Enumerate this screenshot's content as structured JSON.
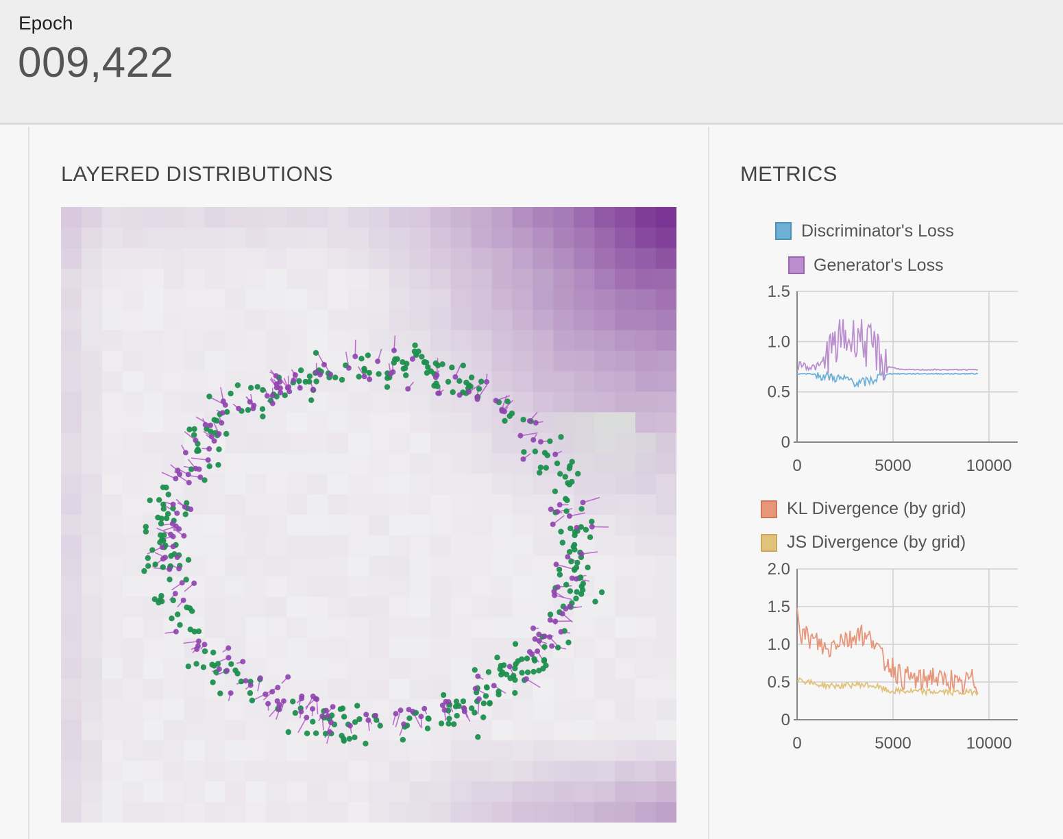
{
  "header": {
    "epoch_label": "Epoch",
    "epoch_value": "009,422"
  },
  "panels": {
    "distributions_title": "LAYERED DISTRIBUTIONS",
    "metrics_title": "METRICS"
  },
  "colors": {
    "real_points": "#1e8f4e",
    "generated_points": "#8e44ad",
    "discriminator_loss": "#6fb0d6",
    "generator_loss": "#bb8fce",
    "kl_divergence": "#e8967a",
    "js_divergence": "#e0c27a",
    "heatmap_high": "#7b3594",
    "heatmap_low": "#efeef0"
  },
  "chart_data": [
    {
      "type": "scatter",
      "title": "LAYERED DISTRIBUTIONS",
      "description_series": [
        {
          "name": "",
          "role": "real",
          "shape": "ring",
          "center": [
            0.5,
            0.5
          ],
          "radius_x": 0.34,
          "radius_y": 0.3
        },
        {
          "name": "",
          "role": "generated",
          "shape": "ring",
          "center": [
            0.5,
            0.5
          ],
          "radius_x": 0.33,
          "radius_y": 0.29
        }
      ],
      "xlim": [
        0,
        1
      ],
      "ylim": [
        0,
        1
      ],
      "background": "heatmap"
    },
    {
      "type": "line",
      "title": "",
      "series": [
        {
          "name": "Discriminator's Loss",
          "points": [
            [
              0,
              0.68
            ],
            [
              200,
              0.68
            ],
            [
              800,
              0.68
            ],
            [
              1200,
              0.66
            ],
            [
              1600,
              0.65
            ],
            [
              2000,
              0.64
            ],
            [
              2400,
              0.62
            ],
            [
              2800,
              0.62
            ],
            [
              3200,
              0.58
            ],
            [
              3600,
              0.6
            ],
            [
              4000,
              0.62
            ],
            [
              4400,
              0.66
            ],
            [
              4800,
              0.68
            ],
            [
              5500,
              0.68
            ],
            [
              7000,
              0.68
            ],
            [
              8500,
              0.68
            ],
            [
              9422,
              0.68
            ]
          ]
        },
        {
          "name": "Generator's Loss",
          "points": [
            [
              0,
              0.75
            ],
            [
              200,
              0.78
            ],
            [
              800,
              0.74
            ],
            [
              1200,
              0.76
            ],
            [
              1600,
              0.9
            ],
            [
              2000,
              0.95
            ],
            [
              2400,
              1.05
            ],
            [
              2800,
              1.0
            ],
            [
              3200,
              1.1
            ],
            [
              3600,
              0.95
            ],
            [
              4000,
              0.95
            ],
            [
              4400,
              0.82
            ],
            [
              4800,
              0.75
            ],
            [
              5500,
              0.72
            ],
            [
              7000,
              0.72
            ],
            [
              8500,
              0.72
            ],
            [
              9422,
              0.72
            ]
          ]
        }
      ],
      "xlim": [
        0,
        11500
      ],
      "ylim": [
        0,
        1.5
      ],
      "xticks": [
        "0",
        "5000",
        "10000"
      ],
      "yticks": [
        "0",
        "0.5",
        "1.0",
        "1.5"
      ],
      "grid": true,
      "legend": "top"
    },
    {
      "type": "line",
      "title": "",
      "series": [
        {
          "name": "KL Divergence (by grid)",
          "points": [
            [
              0,
              1.55
            ],
            [
              200,
              1.15
            ],
            [
              800,
              1.05
            ],
            [
              1200,
              1.0
            ],
            [
              1600,
              0.9
            ],
            [
              2000,
              1.05
            ],
            [
              2400,
              1.1
            ],
            [
              2800,
              1.05
            ],
            [
              3200,
              1.2
            ],
            [
              3600,
              1.05
            ],
            [
              4000,
              1.1
            ],
            [
              4400,
              0.8
            ],
            [
              4800,
              0.75
            ],
            [
              5500,
              0.55
            ],
            [
              6000,
              0.55
            ],
            [
              6500,
              0.5
            ],
            [
              7000,
              0.6
            ],
            [
              7500,
              0.5
            ],
            [
              8000,
              0.55
            ],
            [
              8500,
              0.4
            ],
            [
              9000,
              0.55
            ],
            [
              9422,
              0.45
            ]
          ]
        },
        {
          "name": "JS Divergence (by grid)",
          "points": [
            [
              0,
              0.55
            ],
            [
              800,
              0.48
            ],
            [
              1600,
              0.45
            ],
            [
              2400,
              0.45
            ],
            [
              3200,
              0.47
            ],
            [
              4000,
              0.45
            ],
            [
              4800,
              0.38
            ],
            [
              5500,
              0.38
            ],
            [
              6500,
              0.37
            ],
            [
              7500,
              0.37
            ],
            [
              8500,
              0.36
            ],
            [
              9422,
              0.37
            ]
          ]
        }
      ],
      "xlim": [
        0,
        11500
      ],
      "ylim": [
        0,
        2.0
      ],
      "xticks": [
        "0",
        "5000",
        "10000"
      ],
      "yticks": [
        "0",
        "0.5",
        "1.0",
        "1.5",
        "2.0"
      ],
      "grid": true,
      "legend": "top"
    }
  ]
}
